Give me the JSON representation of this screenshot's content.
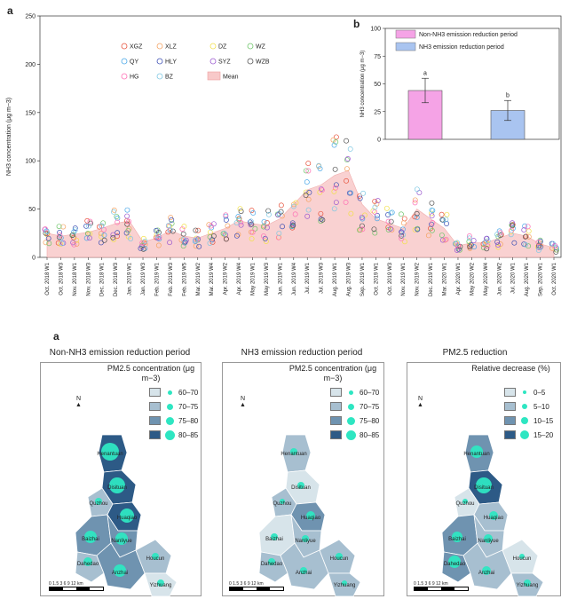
{
  "panel_a_top": {
    "letter": "a",
    "ylabel": "NH3 concentration (μg m−3)",
    "ylim": [
      0,
      250
    ],
    "yticks": [
      "0",
      "50",
      "100",
      "150",
      "200",
      "250"
    ],
    "legend": [
      "XGZ",
      "XLZ",
      "DZ",
      "WZ",
      "QY",
      "HLY",
      "SYZ",
      "WZB",
      "HG",
      "BZ",
      "Mean"
    ],
    "legend_colors": [
      "#e7533d",
      "#f4a261",
      "#f2e04a",
      "#6ec56a",
      "#4aa8e8",
      "#3f51b5",
      "#9b59d0",
      "#555555",
      "#ff6fb5",
      "#7ec8e3",
      "#f8c9c9"
    ]
  },
  "chart_data": {
    "type": "scatter",
    "title": "",
    "xlabel": "",
    "ylabel": "NH3 concentration (μg m−3)",
    "ylim": [
      0,
      250
    ],
    "categories": [
      "Oct. 2018 W1",
      "Oct. 2018 W3",
      "Nov. 2018 W1",
      "Nov. 2018 W3",
      "Dec. 2018 W1",
      "Dec. 2018 W3",
      "Jan. 2019 W1",
      "Jan. 2019 W3",
      "Feb. 2019 W1",
      "Feb. 2019 W3",
      "Feb. 2019 W5",
      "Mar. 2019 W2",
      "Mar. 2019 W4",
      "Apr. 2019 W2",
      "Apr. 2019 W4",
      "May 2019 W1",
      "May 2019 W3",
      "Jun. 2019 W1",
      "Jun. 2019 W4",
      "Jul. 2019 W1",
      "Jul. 2019 W3",
      "Aug. 2019 W1",
      "Aug. 2019 W3",
      "Sep. 2019 W1",
      "Oct. 2019 W1",
      "Oct. 2019 W3",
      "Nov. 2019 W1",
      "Nov. 2019 W2",
      "Dec. 2019 W1",
      "Mar. 2020 W1",
      "Apr. 2020 W1",
      "May 2020 W2",
      "May 2020 W4",
      "Jun. 2020 W2",
      "Jul. 2020 W1",
      "Aug. 2020 W1",
      "Sep. 2020 W1",
      "Oct. 2020 W1"
    ],
    "mean": [
      25,
      22,
      24,
      26,
      30,
      35,
      38,
      16,
      20,
      28,
      22,
      20,
      25,
      30,
      38,
      35,
      33,
      40,
      55,
      70,
      75,
      85,
      90,
      55,
      40,
      35,
      30,
      50,
      40,
      30,
      12,
      15,
      15,
      20,
      25,
      22,
      14,
      10
    ],
    "series_scatter_note": "10 monitoring sites plotted as open circles around the mean",
    "inset": {
      "type": "bar",
      "categories": [
        "Non-NH3 emission reduction period",
        "NH3 emission reduction period"
      ],
      "values": [
        44,
        26
      ],
      "errors": [
        11,
        9
      ],
      "ylim": [
        0,
        100
      ],
      "letters": [
        "a",
        "b"
      ],
      "ylabel": "NH3 concentration (μg m−3)"
    }
  },
  "inset_panel": {
    "letter": "b",
    "yticks": [
      "0",
      "25",
      "50",
      "75",
      "100"
    ],
    "legend": [
      "Non-NH3 emission reduction period",
      "NH3 emission reduction period"
    ],
    "bar_letters": [
      "a",
      "b"
    ],
    "colors": [
      "#f5a3e6",
      "#a9c4f0"
    ]
  },
  "maps": {
    "letter": "a",
    "titles": [
      "Non-NH3 emission reduction period",
      "NH3 emission reduction period",
      "PM2.5 reduction"
    ],
    "legend_titles": [
      "PM2.5 concentration (μg m−3)",
      "PM2.5 concentration (μg m−3)",
      "Relative decrease (%)"
    ],
    "conc_classes": [
      "60–70",
      "70–75",
      "75–80",
      "80–85"
    ],
    "conc_colors": [
      "#d7e4ea",
      "#a7bfd0",
      "#6f93b0",
      "#2d5a86"
    ],
    "dec_classes": [
      "0–5",
      "5–10",
      "10–15",
      "15–20"
    ],
    "dec_colors": [
      "#d7e4ea",
      "#a7bfd0",
      "#6f93b0",
      "#2d5a86"
    ],
    "north": "N",
    "scale_label": "0 1.5 3     6      9      12",
    "scale_unit": "km",
    "places": [
      "Henantuan",
      "Disituan",
      "Quzhou",
      "Huaqiao",
      "Baizhai",
      "Nanliyue",
      "Dahedao",
      "Anzhai",
      "Houcun",
      "Yizhuang"
    ]
  }
}
